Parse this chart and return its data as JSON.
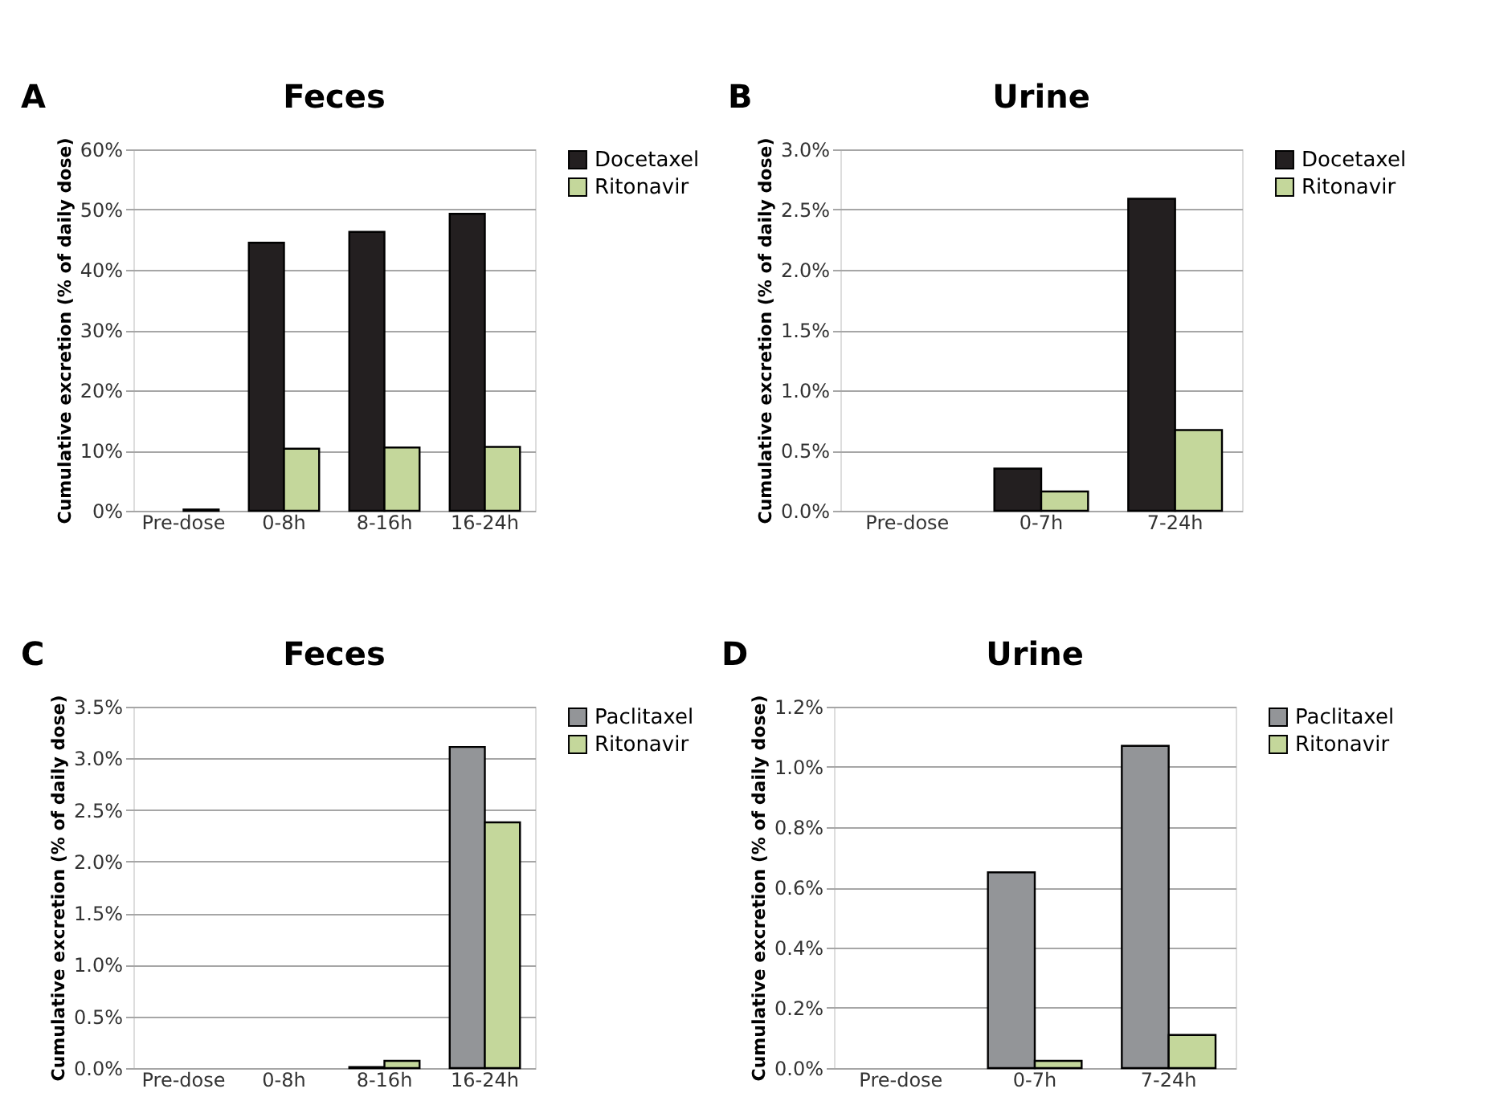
{
  "chart_data": [
    {
      "type": "bar",
      "title": "Feces",
      "annotations": [
        "A"
      ],
      "ylabel": "Cumulative excretion (% of daily dose)",
      "categories": [
        "Pre-dose",
        "0-8h",
        "8-16h",
        "16-24h"
      ],
      "series": [
        {
          "name": "Docetaxel",
          "color": "#231f20",
          "values": [
            0,
            44.5,
            46.3,
            49.3
          ]
        },
        {
          "name": "Ritonavir",
          "color": "#c4d79b",
          "values": [
            0.2,
            10.3,
            10.5,
            10.6
          ]
        }
      ],
      "ylim": [
        0,
        60
      ],
      "yticks": [
        {
          "value": 0,
          "label": "0%"
        },
        {
          "value": 10,
          "label": "10%"
        },
        {
          "value": 20,
          "label": "20%"
        },
        {
          "value": 30,
          "label": "30%"
        },
        {
          "value": 40,
          "label": "40%"
        },
        {
          "value": 50,
          "label": "50%"
        },
        {
          "value": 60,
          "label": "60%"
        }
      ],
      "grid": "y",
      "legend": "right"
    },
    {
      "type": "bar",
      "title": "Urine",
      "annotations": [
        "B"
      ],
      "ylabel": "Cumulative excretion (% of daily dose)",
      "categories": [
        "Pre-dose",
        "0-7h",
        "7-24h"
      ],
      "series": [
        {
          "name": "Docetaxel",
          "color": "#231f20",
          "values": [
            0,
            0.35,
            2.59
          ]
        },
        {
          "name": "Ritonavir",
          "color": "#c4d79b",
          "values": [
            0,
            0.16,
            0.67
          ]
        }
      ],
      "ylim": [
        0,
        3.0
      ],
      "yticks": [
        {
          "value": 0,
          "label": "0.0%"
        },
        {
          "value": 0.5,
          "label": "0.5%"
        },
        {
          "value": 1.0,
          "label": "1.0%"
        },
        {
          "value": 1.5,
          "label": "1.5%"
        },
        {
          "value": 2.0,
          "label": "2.0%"
        },
        {
          "value": 2.5,
          "label": "2.5%"
        },
        {
          "value": 3.0,
          "label": "3.0%"
        }
      ],
      "grid": "y",
      "legend": "right"
    },
    {
      "type": "bar",
      "title": "Feces",
      "annotations": [
        "C"
      ],
      "ylabel": "Cumulative excretion (% of daily dose)",
      "categories": [
        "Pre-dose",
        "0-8h",
        "8-16h",
        "16-24h"
      ],
      "series": [
        {
          "name": "Paclitaxel",
          "color": "#939598",
          "values": [
            0,
            0,
            0.01,
            3.11
          ]
        },
        {
          "name": "Ritonavir",
          "color": "#c4d79b",
          "values": [
            0,
            0,
            0.07,
            2.38
          ]
        }
      ],
      "ylim": [
        0,
        3.5
      ],
      "yticks": [
        {
          "value": 0,
          "label": "0.0%"
        },
        {
          "value": 0.5,
          "label": "0.5%"
        },
        {
          "value": 1.0,
          "label": "1.0%"
        },
        {
          "value": 1.5,
          "label": "1.5%"
        },
        {
          "value": 2.0,
          "label": "2.0%"
        },
        {
          "value": 2.5,
          "label": "2.5%"
        },
        {
          "value": 3.0,
          "label": "3.0%"
        },
        {
          "value": 3.5,
          "label": "3.5%"
        }
      ],
      "grid": "y",
      "legend": "right"
    },
    {
      "type": "bar",
      "title": "Urine",
      "annotations": [
        "D"
      ],
      "ylabel": "Cumulative excretion (% of daily dose)",
      "categories": [
        "Pre-dose",
        "0-7h",
        "7-24h"
      ],
      "series": [
        {
          "name": "Paclitaxel",
          "color": "#939598",
          "values": [
            0,
            0.65,
            1.07
          ]
        },
        {
          "name": "Ritonavir",
          "color": "#c4d79b",
          "values": [
            0,
            0.024,
            0.11
          ]
        }
      ],
      "ylim": [
        0,
        1.2
      ],
      "yticks": [
        {
          "value": 0,
          "label": "0.0%"
        },
        {
          "value": 0.2,
          "label": "0.2%"
        },
        {
          "value": 0.4,
          "label": "0.4%"
        },
        {
          "value": 0.6,
          "label": "0.6%"
        },
        {
          "value": 0.8,
          "label": "0.8%"
        },
        {
          "value": 1.0,
          "label": "1.0%"
        },
        {
          "value": 1.2,
          "label": "1.2%"
        }
      ],
      "grid": "y",
      "legend": "right"
    }
  ]
}
